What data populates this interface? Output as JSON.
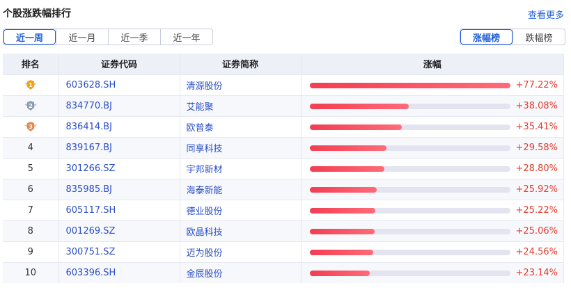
{
  "header": {
    "title": "个股涨跌幅排行",
    "more": "查看更多"
  },
  "periods": [
    {
      "label": "近一周",
      "active": true
    },
    {
      "label": "近一月"
    },
    {
      "label": "近一季"
    },
    {
      "label": "近一年"
    }
  ],
  "board": [
    {
      "label": "涨幅榜",
      "active": true
    },
    {
      "label": "跌幅榜"
    }
  ],
  "table": {
    "headers": [
      "排名",
      "证券代码",
      "证券简称",
      "涨幅"
    ],
    "max_change": 77.22,
    "rows": [
      {
        "rank": "1",
        "medal": "gold",
        "code": "603628.SH",
        "name": "清源股份",
        "change": 77.22,
        "change_label": "+77.22%"
      },
      {
        "rank": "2",
        "medal": "silver",
        "code": "834770.BJ",
        "name": "艾能聚",
        "change": 38.08,
        "change_label": "+38.08%"
      },
      {
        "rank": "3",
        "medal": "bronze",
        "code": "836414.BJ",
        "name": "欧普泰",
        "change": 35.41,
        "change_label": "+35.41%"
      },
      {
        "rank": "4",
        "code": "839167.BJ",
        "name": "同享科技",
        "change": 29.58,
        "change_label": "+29.58%"
      },
      {
        "rank": "5",
        "code": "301266.SZ",
        "name": "宇邦新材",
        "change": 28.8,
        "change_label": "+28.80%"
      },
      {
        "rank": "6",
        "code": "835985.BJ",
        "name": "海泰新能",
        "change": 25.92,
        "change_label": "+25.92%"
      },
      {
        "rank": "7",
        "code": "605117.SH",
        "name": "德业股份",
        "change": 25.22,
        "change_label": "+25.22%"
      },
      {
        "rank": "8",
        "code": "001269.SZ",
        "name": "欧晶科技",
        "change": 25.06,
        "change_label": "+25.06%"
      },
      {
        "rank": "9",
        "code": "300751.SZ",
        "name": "迈为股份",
        "change": 24.56,
        "change_label": "+24.56%"
      },
      {
        "rank": "10",
        "code": "603396.SH",
        "name": "金辰股份",
        "change": 23.14,
        "change_label": "+23.14%"
      }
    ]
  },
  "colors": {
    "accent": "#1f5fd6",
    "up": "#e53b2c",
    "gold": "#f0a21c",
    "silver": "#8e9db3",
    "bronze": "#e58a4f"
  }
}
